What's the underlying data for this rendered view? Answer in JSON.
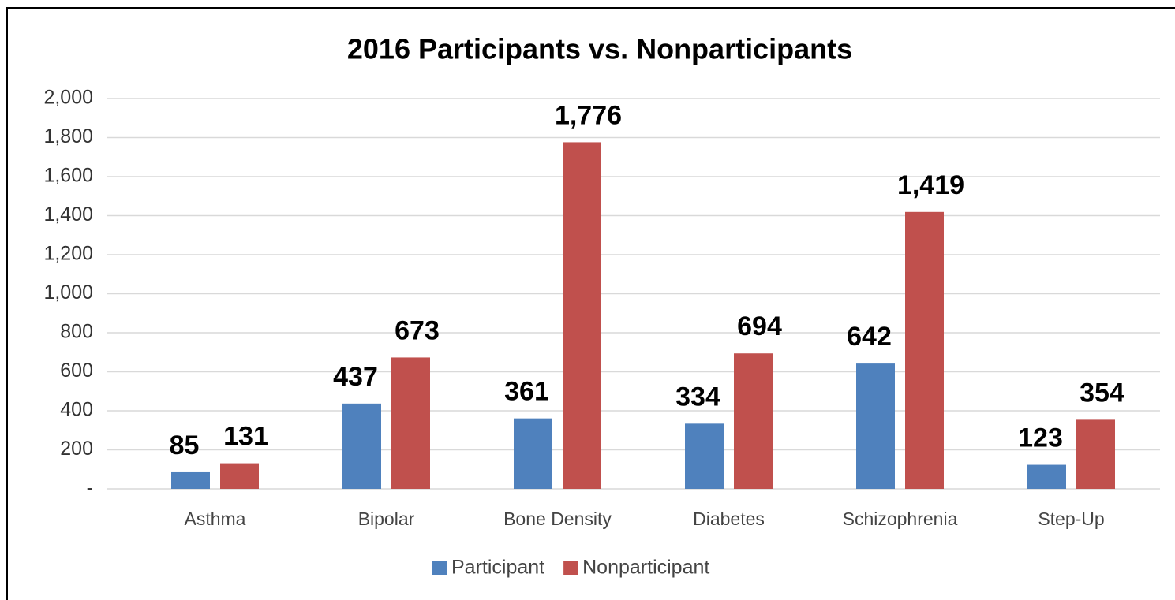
{
  "chart_data": {
    "type": "bar",
    "title": "2016 Participants vs. Nonparticipants",
    "categories": [
      "Asthma",
      "Bipolar",
      "Bone Density",
      "Diabetes",
      "Schizophrenia",
      "Step-Up"
    ],
    "series": [
      {
        "name": "Participant",
        "color": "#4f81bd",
        "values": [
          85,
          437,
          361,
          334,
          642,
          123
        ],
        "value_labels": [
          "85",
          "437",
          "361",
          "334",
          "642",
          "123"
        ]
      },
      {
        "name": "Nonparticipant",
        "color": "#c0504d",
        "values": [
          131,
          673,
          1776,
          694,
          1419,
          354
        ],
        "value_labels": [
          "131",
          "673",
          "1,776",
          "694",
          "1,419",
          "354"
        ]
      }
    ],
    "ylim": [
      0,
      2000
    ],
    "yticks": [
      {
        "value": 0,
        "label": "-"
      },
      200,
      400,
      600,
      800,
      {
        "value": 1000,
        "label": "1,000"
      },
      {
        "value": 1200,
        "label": "1,200"
      },
      {
        "value": 1400,
        "label": "1,400"
      },
      {
        "value": 1600,
        "label": "1,600"
      },
      {
        "value": 1800,
        "label": "1,800"
      },
      {
        "value": 2000,
        "label": "2,000"
      }
    ],
    "grid": true,
    "legend": "bottom"
  }
}
